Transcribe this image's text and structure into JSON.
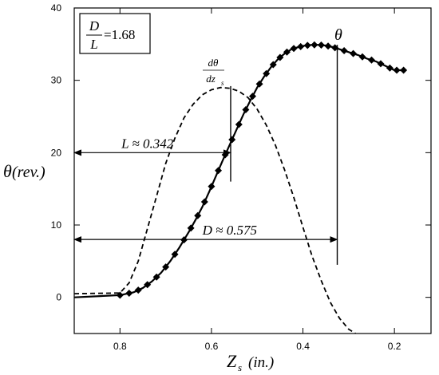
{
  "chart_data": {
    "type": "line",
    "title": "",
    "xlabel": {
      "symbol": "Z",
      "subscript": "s",
      "unit": "(in.)"
    },
    "ylabel": {
      "symbol": "θ",
      "unit": "(rev.)"
    },
    "xlim": [
      0.9,
      0.12
    ],
    "ylim": [
      -5,
      40
    ],
    "x_reversed": true,
    "x_ticks": [
      "0.8",
      "0.6",
      "0.4",
      "0.2"
    ],
    "x_tick_values": [
      0.8,
      0.6,
      0.4,
      0.2
    ],
    "y_ticks": [
      "0",
      "10",
      "20",
      "30",
      "40"
    ],
    "y_tick_values": [
      0,
      10,
      20,
      30,
      40
    ],
    "grid": false,
    "series": [
      {
        "name": "θ",
        "style": "solid-with-diamond-markers",
        "x": [
          0.9,
          0.8,
          0.77,
          0.75,
          0.73,
          0.71,
          0.69,
          0.67,
          0.65,
          0.635,
          0.62,
          0.605,
          0.59,
          0.575,
          0.56,
          0.545,
          0.53,
          0.515,
          0.5,
          0.485,
          0.47,
          0.455,
          0.44,
          0.425,
          0.41,
          0.395,
          0.38,
          0.365,
          0.35,
          0.335,
          0.32,
          0.3,
          0.28,
          0.26,
          0.24,
          0.22,
          0.2,
          0.18
        ],
        "y": [
          0,
          0.3,
          0.7,
          1.3,
          2.2,
          3.4,
          5.0,
          6.9,
          9.0,
          10.7,
          12.5,
          14.6,
          16.8,
          19.0,
          21.1,
          23.2,
          25.3,
          27.2,
          29.0,
          30.5,
          31.8,
          32.9,
          33.7,
          34.3,
          34.6,
          34.8,
          34.9,
          34.9,
          34.8,
          34.6,
          34.3,
          33.9,
          33.5,
          33.0,
          32.6,
          32.0,
          31.4,
          31.4
        ],
        "marker_x": [
          0.8,
          0.78,
          0.76,
          0.74,
          0.72,
          0.7,
          0.68,
          0.66,
          0.645,
          0.63,
          0.615,
          0.6,
          0.585,
          0.57,
          0.555,
          0.54,
          0.525,
          0.51,
          0.495,
          0.48,
          0.465,
          0.45,
          0.435,
          0.42,
          0.405,
          0.39,
          0.375,
          0.36,
          0.345,
          0.33,
          0.31,
          0.29,
          0.27,
          0.25,
          0.23,
          0.21,
          0.195,
          0.18
        ]
      },
      {
        "name": "dθ/dz_s",
        "style": "dashed",
        "x": [
          0.9,
          0.8,
          0.78,
          0.76,
          0.74,
          0.72,
          0.7,
          0.68,
          0.66,
          0.64,
          0.62,
          0.6,
          0.58,
          0.56,
          0.54,
          0.52,
          0.5,
          0.48,
          0.46,
          0.44,
          0.42,
          0.4,
          0.38,
          0.36,
          0.34,
          0.32,
          0.3,
          0.285
        ],
        "y": [
          0.5,
          0.6,
          2.0,
          5.0,
          9.5,
          14.0,
          18.5,
          22.0,
          24.8,
          26.7,
          28.0,
          28.7,
          29.0,
          28.9,
          28.5,
          27.6,
          26.0,
          23.8,
          21.0,
          17.6,
          13.8,
          9.7,
          5.7,
          2.3,
          -0.7,
          -2.9,
          -4.4,
          -5.0
        ]
      }
    ],
    "annotations": {
      "ratio_box": {
        "numerator": "D",
        "denominator": "L",
        "value": "=1.68"
      },
      "theta_label": "θ",
      "deriv_label": {
        "top": "dθ",
        "bottom": "dz",
        "subscript": "s"
      },
      "L_label": "L ≈ 0.342",
      "D_label": "D ≈ 0.575",
      "L_arrow": {
        "from_x": 0.9,
        "to_x": 0.558,
        "y": 20
      },
      "D_arrow": {
        "from_x": 0.9,
        "to_x": 0.325,
        "y": 8
      },
      "deriv_marker_x": 0.558,
      "theta_marker_x": 0.325
    }
  }
}
